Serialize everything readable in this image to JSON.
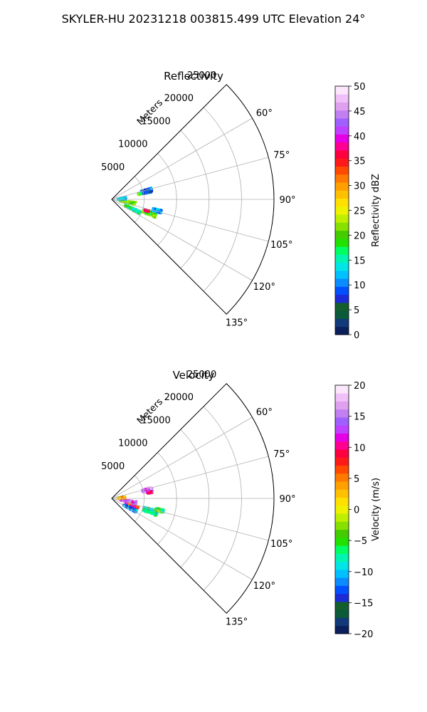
{
  "figure": {
    "suptitle": "SKYLER-HU  20231218  003815.499 UTC Elevation 24°"
  },
  "chart_data": [
    {
      "type": "heatmap",
      "projection": "polar-sector",
      "title": "Reflectivity",
      "radial_label": "Meters",
      "radial_ticks": [
        "5000",
        "10000",
        "15000",
        "20000",
        "25000"
      ],
      "radial_tick_values": [
        5000,
        10000,
        15000,
        20000,
        25000
      ],
      "r_max": 25000,
      "theta_range_deg": [
        45,
        135
      ],
      "theta_ticks": [
        "60°",
        "75°",
        "90°",
        "105°",
        "120°",
        "135°"
      ],
      "theta_tick_values": [
        60,
        75,
        90,
        105,
        120,
        135
      ],
      "grid": true,
      "colorbar": {
        "label": "Reflectivity dBZ",
        "min": 0,
        "max": 50,
        "ticks": [
          "0",
          "5",
          "10",
          "15",
          "20",
          "25",
          "30",
          "35",
          "40",
          "45",
          "50"
        ],
        "tick_values": [
          0,
          5,
          10,
          15,
          20,
          25,
          30,
          35,
          40,
          45,
          50
        ],
        "colors": [
          "#0b1f5c",
          "#123a7a",
          "#0b5a3a",
          "#145e2e",
          "#1c2bd6",
          "#0050ff",
          "#0a8cff",
          "#00c0ff",
          "#00e6e6",
          "#00f5b0",
          "#00ff60",
          "#22e000",
          "#44cc00",
          "#88e000",
          "#bfef00",
          "#eef200",
          "#ffe000",
          "#ffc000",
          "#ffa000",
          "#ff7a00",
          "#ff4a00",
          "#ff1a1a",
          "#ff0040",
          "#ff0090",
          "#e600e6",
          "#c040ff",
          "#a060ff",
          "#c080f0",
          "#e0a0f0",
          "#f0c0f8",
          "#fbe6fb"
        ]
      },
      "echo_clusters": [
        {
          "theta_deg": 77,
          "r": 5500,
          "dtheta_deg": 7,
          "dr": 1700,
          "value": 10
        },
        {
          "theta_deg": 79,
          "r": 4400,
          "dtheta_deg": 3,
          "dr": 500,
          "value": 20
        },
        {
          "theta_deg": 110,
          "r": 6200,
          "dtheta_deg": 6,
          "dr": 2200,
          "value": 20
        },
        {
          "theta_deg": 108,
          "r": 5700,
          "dtheta_deg": 2,
          "dr": 700,
          "value": 37
        },
        {
          "theta_deg": 104,
          "r": 7200,
          "dtheta_deg": 4,
          "dr": 1400,
          "value": 12
        },
        {
          "theta_deg": 100,
          "r": 2500,
          "dtheta_deg": 8,
          "dr": 2500,
          "value": 21
        },
        {
          "theta_deg": 115,
          "r": 3500,
          "dtheta_deg": 6,
          "dr": 2600,
          "value": 17
        },
        {
          "theta_deg": 86,
          "r": 1600,
          "dtheta_deg": 10,
          "dr": 1300,
          "value": 12
        }
      ]
    },
    {
      "type": "heatmap",
      "projection": "polar-sector",
      "title": "Velocity",
      "radial_label": "Meters",
      "radial_ticks": [
        "5000",
        "10000",
        "15000",
        "20000",
        "25000"
      ],
      "radial_tick_values": [
        5000,
        10000,
        15000,
        20000,
        25000
      ],
      "r_max": 25000,
      "theta_range_deg": [
        45,
        135
      ],
      "theta_ticks": [
        "60°",
        "75°",
        "90°",
        "105°",
        "120°",
        "135°"
      ],
      "theta_tick_values": [
        60,
        75,
        90,
        105,
        120,
        135
      ],
      "grid": true,
      "colorbar": {
        "label": "Velocity (m/s)",
        "min": -20,
        "max": 20,
        "ticks": [
          "−20",
          "−15",
          "−10",
          "−5",
          "0",
          "5",
          "10",
          "15",
          "20"
        ],
        "tick_values": [
          -20,
          -15,
          -10,
          -5,
          0,
          5,
          10,
          15,
          20
        ],
        "colors": [
          "#0b1f5c",
          "#123a7a",
          "#0b5a3a",
          "#145e2e",
          "#1c2bd6",
          "#0050ff",
          "#0a8cff",
          "#00c0ff",
          "#00e6e6",
          "#00f5b0",
          "#00ff60",
          "#22e000",
          "#44cc00",
          "#88e000",
          "#bfef00",
          "#eef200",
          "#ffe000",
          "#ffc000",
          "#ffa000",
          "#ff7a00",
          "#ff4a00",
          "#ff1a1a",
          "#ff0040",
          "#ff0090",
          "#e600e6",
          "#c040ff",
          "#a060ff",
          "#c080f0",
          "#e0a0f0",
          "#f0c0f8",
          "#fbe6fb"
        ]
      },
      "echo_clusters": [
        {
          "theta_deg": 77,
          "r": 5600,
          "dtheta_deg": 6,
          "dr": 1600,
          "value": 15
        },
        {
          "theta_deg": 81,
          "r": 5900,
          "dtheta_deg": 3,
          "dr": 800,
          "value": 10
        },
        {
          "theta_deg": 108,
          "r": 6300,
          "dtheta_deg": 7,
          "dr": 2300,
          "value": -8
        },
        {
          "theta_deg": 104,
          "r": 7600,
          "dtheta_deg": 4,
          "dr": 1300,
          "value": -5
        },
        {
          "theta_deg": 100,
          "r": 2600,
          "dtheta_deg": 7,
          "dr": 2500,
          "value": 14
        },
        {
          "theta_deg": 110,
          "r": 3300,
          "dtheta_deg": 6,
          "dr": 2000,
          "value": 9
        },
        {
          "theta_deg": 118,
          "r": 3200,
          "dtheta_deg": 6,
          "dr": 2200,
          "value": -11
        },
        {
          "theta_deg": 86,
          "r": 1500,
          "dtheta_deg": 10,
          "dr": 1200,
          "value": 3
        }
      ]
    }
  ]
}
